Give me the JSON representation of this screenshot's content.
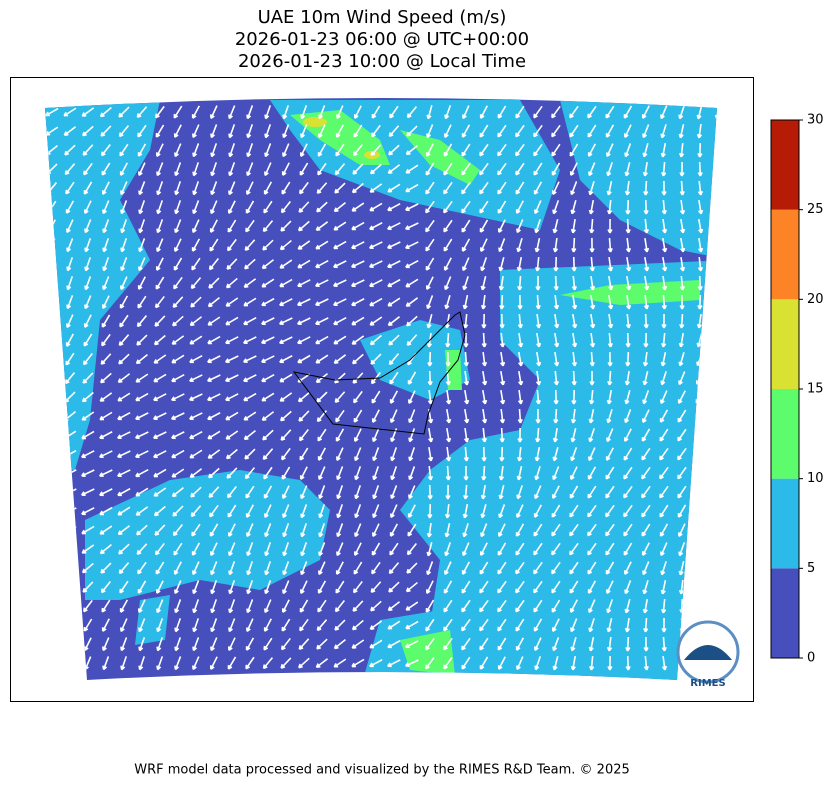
{
  "title": [
    "UAE 10m Wind Speed (m/s)",
    "2026-01-23 06:00 @ UTC+00:00",
    "2026-01-23 10:00 @ Local Time"
  ],
  "colorbar": {
    "ticks": [
      0,
      5,
      10,
      15,
      20,
      25,
      30
    ],
    "colors": [
      "#464fbb",
      "#2cbbe8",
      "#5cfc6c",
      "#d9e233",
      "#fc8426",
      "#b51b05"
    ]
  },
  "logo": "RIMES",
  "footer": "WRF model data processed and visualized by the RIMES R&D Team. © 2025"
}
